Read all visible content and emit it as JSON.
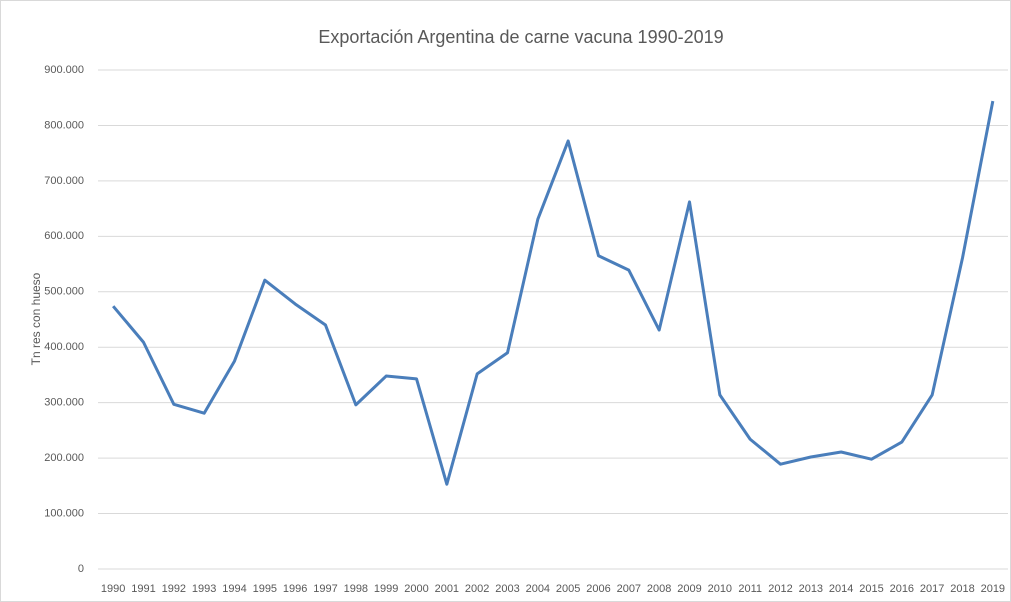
{
  "chart_data": {
    "type": "line",
    "title": "Exportación Argentina de carne vacuna 1990-2019",
    "y_label": "Tn res con hueso",
    "categories": [
      "1990",
      "1991",
      "1992",
      "1993",
      "1994",
      "1995",
      "1996",
      "1997",
      "1998",
      "1999",
      "2000",
      "2001",
      "2002",
      "2003",
      "2004",
      "2005",
      "2006",
      "2007",
      "2008",
      "2009",
      "2010",
      "2011",
      "2012",
      "2013",
      "2014",
      "2015",
      "2016",
      "2017",
      "2018",
      "2019"
    ],
    "series": [
      {
        "name": "Tn res con hueso",
        "color": "#4a7ebb",
        "values": [
          474000,
          409000,
          297000,
          281000,
          375000,
          521000,
          478000,
          440000,
          296000,
          348000,
          343000,
          153000,
          352000,
          390000,
          631000,
          772000,
          565000,
          539000,
          431000,
          662000,
          314000,
          234000,
          189000,
          202000,
          211000,
          198000,
          229000,
          314000,
          561000,
          844000
        ]
      }
    ],
    "ylim": [
      0,
      900000
    ],
    "yticks": [
      0,
      {
        "value": 100000,
        "label": "100.000"
      },
      {
        "value": 200000,
        "label": "200.000"
      },
      {
        "value": 300000,
        "label": "300.000"
      },
      {
        "value": 400000,
        "label": "400.000"
      },
      {
        "value": 500000,
        "label": "500.000"
      },
      {
        "value": 600000,
        "label": "600.000"
      },
      {
        "value": 700000,
        "label": "700.000"
      },
      {
        "value": 800000,
        "label": "800.000"
      },
      {
        "value": 900000,
        "label": "900.000"
      }
    ],
    "grid": true
  }
}
